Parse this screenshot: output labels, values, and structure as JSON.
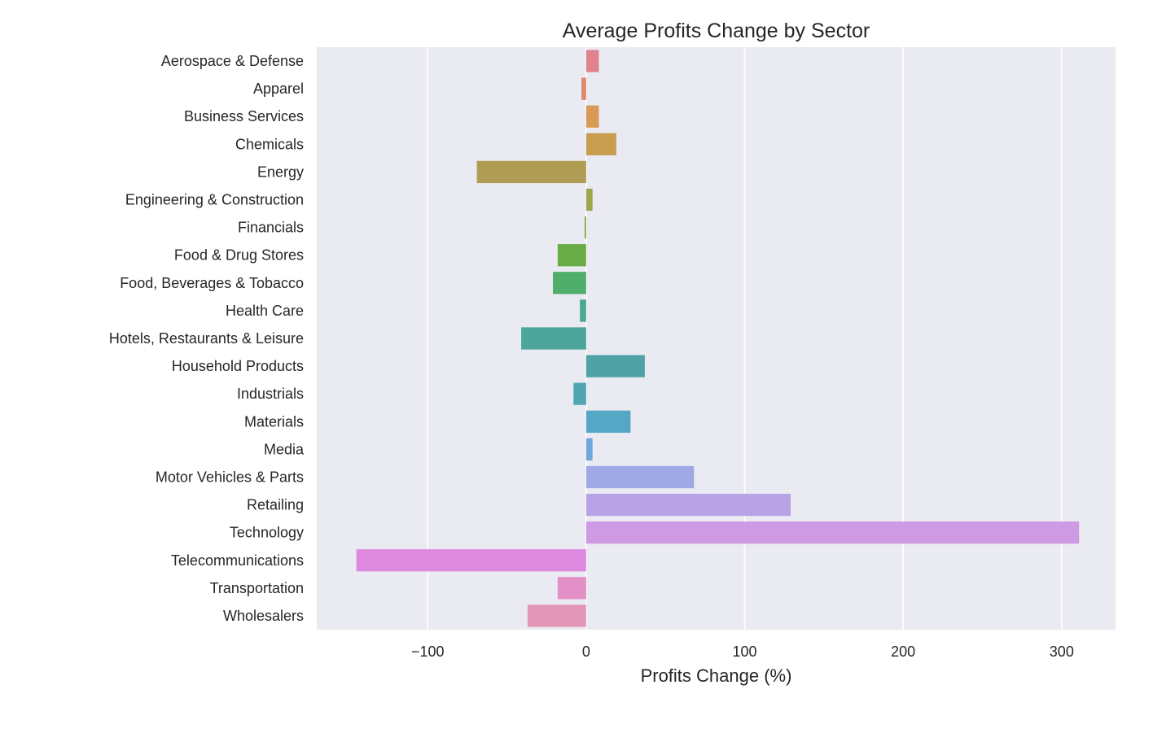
{
  "chart_data": {
    "type": "bar",
    "orientation": "horizontal",
    "title": "Average Profits Change by Sector",
    "xlabel": "Profits Change (%)",
    "ylabel": "",
    "xlim": [
      -170,
      334
    ],
    "xticks": [
      -100,
      0,
      100,
      200,
      300
    ],
    "xtick_labels": [
      "−100",
      "0",
      "100",
      "200",
      "300"
    ],
    "grid": true,
    "categories": [
      "Aerospace & Defense",
      "Apparel",
      "Business Services",
      "Chemicals",
      "Energy",
      "Engineering & Construction",
      "Financials",
      "Food & Drug Stores",
      "Food, Beverages & Tobacco",
      "Health Care",
      "Hotels, Restaurants & Leisure",
      "Household Products",
      "Industrials",
      "Materials",
      "Media",
      "Motor Vehicles & Parts",
      "Retailing",
      "Technology",
      "Telecommunications",
      "Transportation",
      "Wholesalers"
    ],
    "values": [
      8,
      -3,
      8,
      19,
      -69,
      4,
      -1,
      -18,
      -21,
      -4,
      -41,
      37,
      -8,
      28,
      4,
      68,
      129,
      311,
      -145,
      -18,
      -37
    ],
    "colors": [
      "#e1838f",
      "#df8a70",
      "#d99a55",
      "#c79d50",
      "#b09d54",
      "#9ea64e",
      "#89ae46",
      "#68ad46",
      "#4eae6a",
      "#4bab8e",
      "#4ea59b",
      "#4fa3a6",
      "#52a6b3",
      "#56a6c6",
      "#6ea8db",
      "#a0a8e6",
      "#b7a3e6",
      "#ce9ae4",
      "#dd8adf",
      "#e390c6",
      "#e396b6"
    ]
  }
}
